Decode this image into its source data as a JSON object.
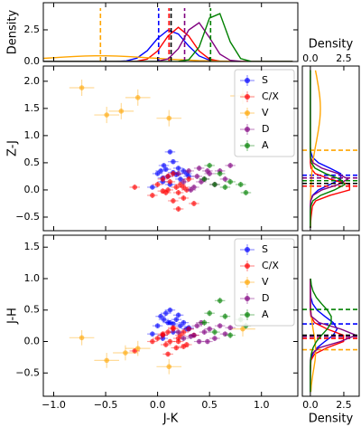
{
  "chart_data": [
    {
      "type": "density",
      "ylabel": "Density",
      "xlim": [
        -1.1,
        1.35
      ],
      "ylim": [
        0,
        4.64
      ],
      "xticks": [
        -1,
        -0.5,
        0,
        0.5,
        1
      ],
      "yticks": [
        {
          "value": 0,
          "label": "0.0"
        },
        {
          "value": 2.5,
          "label": "2.5"
        }
      ],
      "x": [
        -1.1,
        -1.0,
        -0.9,
        -0.8,
        -0.7,
        -0.6,
        -0.5,
        -0.4,
        -0.3,
        -0.2,
        -0.1,
        0.0,
        0.1,
        0.2,
        0.3,
        0.4,
        0.5,
        0.6,
        0.7,
        0.8,
        0.9,
        1.0,
        1.1,
        1.2,
        1.3
      ],
      "series": [
        {
          "color": "#0000ff",
          "median": 0.01,
          "values": [
            0,
            0,
            0,
            0,
            0,
            0,
            0,
            0,
            0.05,
            0.26,
            0.85,
            1.82,
            2.48,
            2.17,
            1.22,
            0.44,
            0.1,
            0.02,
            0,
            0,
            0,
            0,
            0,
            0,
            0
          ]
        },
        {
          "color": "#ff0000",
          "median": 0.11,
          "values": [
            0,
            0,
            0,
            0,
            0,
            0,
            0,
            0,
            0,
            0.02,
            0.19,
            0.83,
            2.01,
            2.7,
            2.01,
            0.83,
            0.19,
            0.02,
            0,
            0,
            0,
            0,
            0,
            0,
            0
          ]
        },
        {
          "color": "#ffa500",
          "median": -0.55,
          "values": [
            0.25,
            0.3,
            0.35,
            0.4,
            0.43,
            0.45,
            0.45,
            0.43,
            0.4,
            0.35,
            0.3,
            0.25,
            0.19,
            0.15,
            0.11,
            0.07,
            0.05,
            0.03,
            0.02,
            0.01,
            0.01,
            0,
            0,
            0,
            0
          ]
        },
        {
          "color": "#800080",
          "median": 0.26,
          "values": [
            0,
            0,
            0,
            0,
            0,
            0,
            0,
            0,
            0,
            0,
            0,
            0.02,
            0.2,
            1.01,
            2.49,
            3.06,
            1.88,
            0.58,
            0.09,
            0.01,
            0,
            0,
            0,
            0,
            0
          ]
        },
        {
          "color": "#008000",
          "median": 0.51,
          "values": [
            0,
            0,
            0,
            0,
            0,
            0,
            0,
            0,
            0,
            0,
            0,
            0,
            0,
            0.01,
            0.14,
            1.14,
            3.43,
            3.78,
            1.54,
            0.23,
            0.01,
            0,
            0,
            0,
            0
          ]
        }
      ],
      "median_all": 0.13,
      "median_all_color": "#000000"
    },
    {
      "type": "scatter",
      "ylabel": "Z-J",
      "xlim": [
        -1.1,
        1.35
      ],
      "ylim": [
        -0.75,
        2.28
      ],
      "xticks": [
        -1,
        -0.5,
        0,
        0.5,
        1
      ],
      "yticks": [
        {
          "value": -0.5,
          "label": "−0.5"
        },
        {
          "value": 0,
          "label": "0.0"
        },
        {
          "value": 0.5,
          "label": "0.5"
        },
        {
          "value": 1,
          "label": "1.0"
        },
        {
          "value": 1.5,
          "label": "1.5"
        },
        {
          "value": 2,
          "label": "2.0"
        }
      ],
      "legend": "upper right",
      "series": [
        {
          "name": "S",
          "color": "#0000ff",
          "xerr": 0.05,
          "yerr": 0.04,
          "x": [
            -0.05,
            0.0,
            0.03,
            0.05,
            0.08,
            0.1,
            0.12,
            0.15,
            0.18,
            0.2,
            0.22,
            0.25,
            0.28,
            0.12,
            0.06,
            0.3,
            0.05,
            0.15
          ],
          "y": [
            0.05,
            0.3,
            0.35,
            0.15,
            0.38,
            0.25,
            0.7,
            0.32,
            0.28,
            0.4,
            0.2,
            0.35,
            0.3,
            0.1,
            0.45,
            0.25,
            0.22,
            0.52
          ]
        },
        {
          "name": "C/X",
          "color": "#ff0000",
          "xerr": 0.05,
          "yerr": 0.05,
          "x": [
            -0.22,
            -0.05,
            0.0,
            0.05,
            0.08,
            0.1,
            0.12,
            0.15,
            0.18,
            0.2,
            0.22,
            0.25,
            0.28,
            0.3,
            0.35,
            0.1,
            0.15,
            0.2,
            0.05,
            0.25
          ],
          "y": [
            0.05,
            -0.1,
            0.1,
            0.2,
            -0.05,
            0.0,
            0.15,
            -0.2,
            0.05,
            -0.35,
            0.1,
            -0.15,
            0.0,
            0.2,
            -0.25,
            0.25,
            0.3,
            -0.05,
            -0.02,
            0.05
          ]
        },
        {
          "name": "V",
          "color": "#ffa500",
          "xerr": 0.12,
          "yerr": 0.15,
          "x": [
            -0.73,
            -0.49,
            -0.35,
            -0.19,
            0.11,
            0.82
          ],
          "y": [
            1.88,
            1.38,
            1.45,
            1.7,
            1.32,
            1.73
          ]
        },
        {
          "name": "D",
          "color": "#800080",
          "xerr": 0.05,
          "yerr": 0.05,
          "x": [
            0.2,
            0.25,
            0.3,
            0.35,
            0.38,
            0.4,
            0.45,
            0.5,
            0.55,
            0.6,
            0.32,
            0.42,
            0.48,
            0.65,
            0.7
          ],
          "y": [
            0.3,
            0.15,
            0.35,
            0.05,
            0.25,
            0.4,
            0.2,
            0.3,
            0.1,
            0.35,
            0.0,
            0.15,
            0.35,
            0.2,
            0.45
          ]
        },
        {
          "name": "A",
          "color": "#008000",
          "xerr": 0.05,
          "yerr": 0.05,
          "x": [
            0.45,
            0.55,
            0.6,
            0.65,
            0.7,
            0.8,
            0.85,
            0.5
          ],
          "y": [
            0.2,
            0.1,
            0.3,
            0.05,
            0.15,
            0.1,
            -0.05,
            0.45
          ]
        }
      ]
    },
    {
      "type": "scatter",
      "xlabel": "J-K",
      "ylabel": "J-H",
      "xlim": [
        -1.1,
        1.35
      ],
      "ylim": [
        -0.87,
        1.69
      ],
      "xtick_labels": "bottom",
      "xticks": [
        {
          "value": -1,
          "label": "−1.0"
        },
        {
          "value": -0.5,
          "label": "−0.5"
        },
        {
          "value": 0,
          "label": "0.0"
        },
        {
          "value": 0.5,
          "label": "0.5"
        },
        {
          "value": 1,
          "label": "1.0"
        }
      ],
      "yticks": [
        {
          "value": -0.5,
          "label": "−0.5"
        },
        {
          "value": 0,
          "label": "0.0"
        },
        {
          "value": 0.5,
          "label": "0.5"
        },
        {
          "value": 1,
          "label": "1.0"
        },
        {
          "value": 1.5,
          "label": "1.5"
        }
      ],
      "legend": "upper right",
      "series": [
        {
          "name": "S",
          "color": "#0000ff",
          "xerr": 0.05,
          "yerr": 0.04,
          "x": [
            -0.05,
            0.0,
            0.03,
            0.05,
            0.08,
            0.1,
            0.12,
            0.15,
            0.18,
            0.2,
            0.22,
            0.25,
            0.28,
            0.12,
            0.06,
            0.3,
            0.05,
            0.15
          ],
          "y": [
            0.12,
            0.25,
            0.4,
            0.1,
            0.45,
            0.3,
            0.3,
            0.15,
            0.35,
            0.42,
            0.25,
            0.3,
            0.2,
            0.5,
            0.35,
            0.22,
            0.05,
            0.28
          ]
        },
        {
          "name": "C/X",
          "color": "#ff0000",
          "xerr": 0.05,
          "yerr": 0.04,
          "x": [
            -0.22,
            -0.05,
            0.0,
            0.05,
            0.08,
            0.1,
            0.12,
            0.15,
            0.18,
            0.2,
            0.22,
            0.25,
            0.28,
            0.3,
            0.35,
            0.1,
            0.15,
            0.2,
            0.05,
            0.25
          ],
          "y": [
            -0.15,
            0.0,
            0.05,
            0.1,
            -0.05,
            0.15,
            0.0,
            0.2,
            -0.1,
            0.05,
            0.1,
            0.15,
            -0.05,
            0.2,
            0.1,
            -0.2,
            0.22,
            0.0,
            0.12,
            -0.08
          ]
        },
        {
          "name": "V",
          "color": "#ffa500",
          "xerr": 0.12,
          "yerr": 0.12,
          "x": [
            -0.73,
            -0.49,
            -0.31,
            -0.19,
            0.11,
            0.82
          ],
          "y": [
            0.06,
            -0.3,
            -0.18,
            -0.11,
            -0.4,
            0.2
          ]
        },
        {
          "name": "D",
          "color": "#800080",
          "xerr": 0.05,
          "yerr": 0.04,
          "x": [
            0.2,
            0.25,
            0.3,
            0.35,
            0.38,
            0.4,
            0.45,
            0.5,
            0.55,
            0.6,
            0.32,
            0.42,
            0.48,
            0.65,
            0.7
          ],
          "y": [
            0.15,
            0.05,
            0.2,
            0.1,
            0.25,
            0.0,
            0.15,
            0.2,
            0.05,
            0.25,
            0.08,
            0.3,
            0.0,
            0.12,
            0.22
          ]
        },
        {
          "name": "A",
          "color": "#008000",
          "xerr": 0.05,
          "yerr": 0.05,
          "x": [
            0.45,
            0.55,
            0.6,
            0.65,
            0.7,
            0.8,
            0.85,
            0.5
          ],
          "y": [
            0.3,
            0.15,
            0.65,
            0.4,
            0.1,
            0.35,
            0.25,
            0.45
          ]
        }
      ]
    },
    {
      "type": "density",
      "orientation": "horizontal",
      "xlabel": "Density",
      "xlabel_position": "top",
      "xtick_labels": "top",
      "xlim": [
        -0.6,
        3.65
      ],
      "ylim": [
        -0.75,
        2.28
      ],
      "xticks": [
        {
          "value": 0,
          "label": "0.0"
        },
        {
          "value": 2.5,
          "label": "2.5"
        }
      ],
      "y": [
        -0.7,
        -0.6,
        -0.5,
        -0.4,
        -0.3,
        -0.2,
        -0.1,
        0.0,
        0.1,
        0.2,
        0.3,
        0.4,
        0.5,
        0.6,
        0.7,
        0.8,
        0.9,
        1.0,
        1.1,
        1.2,
        1.3,
        1.4,
        1.5,
        1.6,
        1.7,
        1.8,
        1.9,
        2.0,
        2.1,
        2.2
      ],
      "series": [
        {
          "color": "#0000ff",
          "median": 0.27,
          "values": [
            0,
            0,
            0,
            0,
            0,
            0.03,
            0.16,
            0.6,
            1.46,
            2.27,
            2.27,
            1.46,
            0.6,
            0.16,
            0.03,
            0,
            0,
            0,
            0,
            0,
            0,
            0,
            0,
            0,
            0,
            0,
            0,
            0,
            0,
            0
          ]
        },
        {
          "color": "#ff0000",
          "median": 0.07,
          "values": [
            0,
            0.02,
            0.05,
            0.1,
            0.15,
            0.4,
            1.47,
            2.93,
            2.93,
            1.47,
            0.36,
            0.05,
            0,
            0,
            0,
            0,
            0,
            0,
            0,
            0,
            0,
            0,
            0,
            0,
            0,
            0,
            0,
            0,
            0,
            0
          ]
        },
        {
          "color": "#ffa500",
          "median": 0.73,
          "values": [
            0,
            0,
            0,
            0.01,
            0.01,
            0.01,
            0.02,
            0.03,
            0.05,
            0.07,
            0.1,
            0.14,
            0.19,
            0.24,
            0.31,
            0.38,
            0.46,
            0.53,
            0.6,
            0.66,
            0.71,
            0.74,
            0.75,
            0.74,
            0.71,
            0.66,
            0.6,
            0.53,
            0.46,
            0.38
          ]
        },
        {
          "color": "#800080",
          "median": 0.22,
          "values": [
            0,
            0,
            0,
            0,
            0,
            0.02,
            0.2,
            0.86,
            2.08,
            2.8,
            2.08,
            0.86,
            0.2,
            0.02,
            0,
            0,
            0,
            0,
            0,
            0,
            0,
            0,
            0,
            0,
            0,
            0,
            0,
            0,
            0,
            0
          ]
        },
        {
          "color": "#008000",
          "median": 0.17,
          "values": [
            0,
            0,
            0,
            0,
            0.03,
            0.19,
            0.76,
            1.8,
            2.57,
            2.21,
            1.14,
            0.35,
            0.07,
            0.01,
            0,
            0,
            0,
            0,
            0,
            0,
            0,
            0,
            0,
            0,
            0,
            0,
            0,
            0,
            0,
            0
          ]
        }
      ],
      "median_all": 0.12,
      "median_all_color": "#000000"
    },
    {
      "type": "density",
      "orientation": "horizontal",
      "xlabel": "Density",
      "xtick_labels": "bottom",
      "xlim": [
        -0.6,
        3.65
      ],
      "ylim": [
        -0.87,
        1.69
      ],
      "xticks": [
        {
          "value": 0,
          "label": "0.0"
        },
        {
          "value": 2.5,
          "label": "2.5"
        }
      ],
      "y": [
        -0.8,
        -0.7,
        -0.6,
        -0.5,
        -0.4,
        -0.3,
        -0.2,
        -0.1,
        0.0,
        0.1,
        0.2,
        0.3,
        0.4,
        0.5,
        0.6,
        0.7,
        0.8,
        0.9,
        1.0
      ],
      "series": [
        {
          "color": "#0000ff",
          "median": 0.28,
          "values": [
            0,
            0,
            0,
            0,
            0.01,
            0.04,
            0.17,
            0.5,
            1.08,
            1.71,
            2.0,
            1.71,
            1.08,
            0.5,
            0.17,
            0.04,
            0.01,
            0,
            0
          ]
        },
        {
          "color": "#ff0000",
          "median": 0.05,
          "values": [
            0,
            0,
            0,
            0,
            0.02,
            0.04,
            0.31,
            1.24,
            2.48,
            2.48,
            1.24,
            0.31,
            0.04,
            0,
            0,
            0,
            0,
            0,
            0
          ]
        },
        {
          "color": "#ffa500",
          "median": -0.13,
          "values": [
            0.04,
            0.07,
            0.13,
            0.2,
            0.28,
            0.35,
            0.39,
            0.39,
            0.35,
            0.28,
            0.2,
            0.13,
            0.07,
            0.04,
            0.02,
            0.01,
            0,
            0,
            0
          ]
        },
        {
          "color": "#800080",
          "median": 0.08,
          "values": [
            0,
            0,
            0,
            0,
            0,
            0,
            0.08,
            0.65,
            2.25,
            3.4,
            2.25,
            0.65,
            0.08,
            0.01,
            0,
            0,
            0,
            0,
            0
          ]
        },
        {
          "color": "#008000",
          "median": 0.51,
          "values": [
            0,
            0,
            0,
            0,
            0,
            0.02,
            0.07,
            0.2,
            0.45,
            0.84,
            1.27,
            1.56,
            1.56,
            1.27,
            0.84,
            0.45,
            0.2,
            0.07,
            0.02
          ]
        }
      ],
      "median_all": 0.1,
      "median_all_color": "#000000"
    }
  ]
}
